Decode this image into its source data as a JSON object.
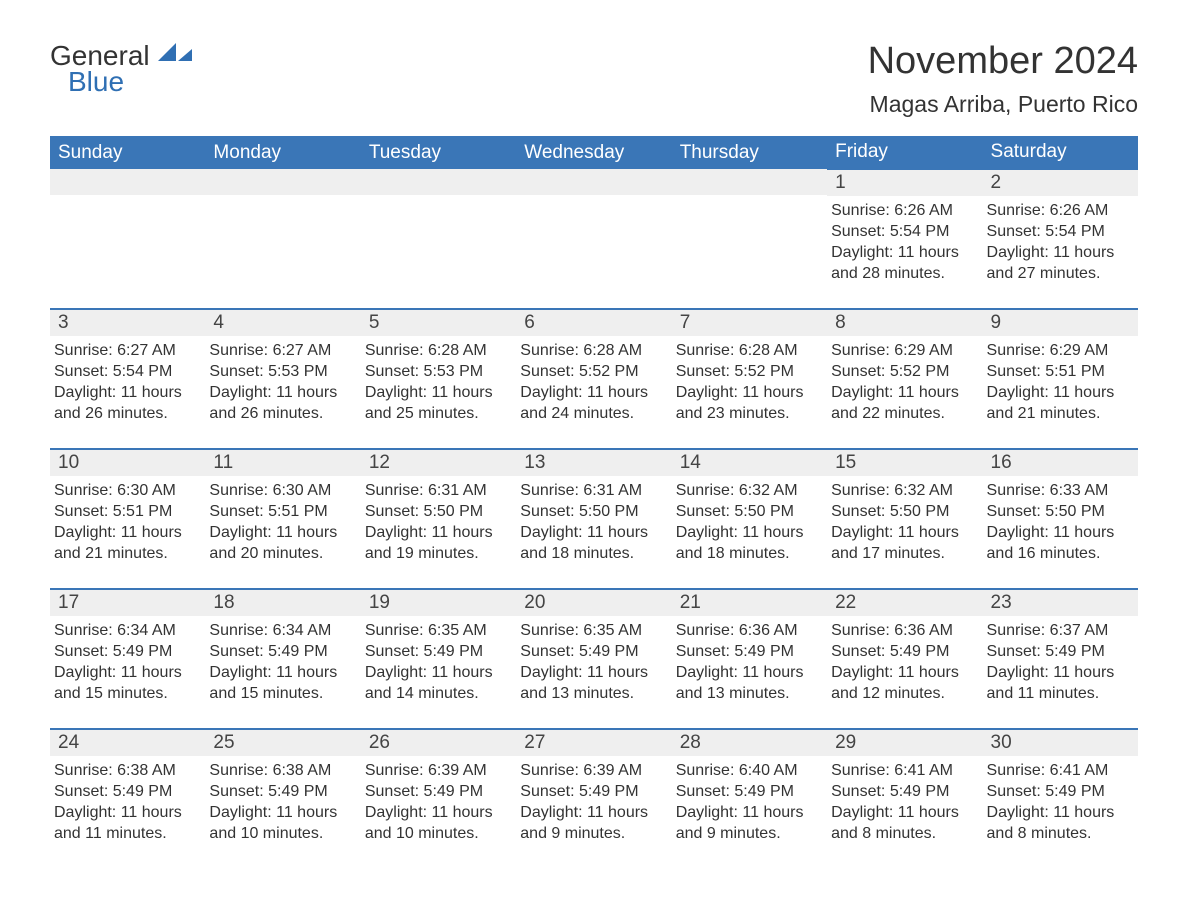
{
  "logo": {
    "text1": "General",
    "text2": "Blue"
  },
  "title": "November 2024",
  "location": "Magas Arriba, Puerto Rico",
  "colors": {
    "header_bg": "#3a76b7",
    "header_text": "#ffffff",
    "daynum_bg": "#efefef",
    "border": "#3a76b7",
    "body_text": "#333333",
    "logo_blue": "#2f6fb3"
  },
  "weekdays": [
    "Sunday",
    "Monday",
    "Tuesday",
    "Wednesday",
    "Thursday",
    "Friday",
    "Saturday"
  ],
  "weeks": [
    [
      null,
      null,
      null,
      null,
      null,
      {
        "day": "1",
        "sunrise": "Sunrise: 6:26 AM",
        "sunset": "Sunset: 5:54 PM",
        "daylight": "Daylight: 11 hours and 28 minutes."
      },
      {
        "day": "2",
        "sunrise": "Sunrise: 6:26 AM",
        "sunset": "Sunset: 5:54 PM",
        "daylight": "Daylight: 11 hours and 27 minutes."
      }
    ],
    [
      {
        "day": "3",
        "sunrise": "Sunrise: 6:27 AM",
        "sunset": "Sunset: 5:54 PM",
        "daylight": "Daylight: 11 hours and 26 minutes."
      },
      {
        "day": "4",
        "sunrise": "Sunrise: 6:27 AM",
        "sunset": "Sunset: 5:53 PM",
        "daylight": "Daylight: 11 hours and 26 minutes."
      },
      {
        "day": "5",
        "sunrise": "Sunrise: 6:28 AM",
        "sunset": "Sunset: 5:53 PM",
        "daylight": "Daylight: 11 hours and 25 minutes."
      },
      {
        "day": "6",
        "sunrise": "Sunrise: 6:28 AM",
        "sunset": "Sunset: 5:52 PM",
        "daylight": "Daylight: 11 hours and 24 minutes."
      },
      {
        "day": "7",
        "sunrise": "Sunrise: 6:28 AM",
        "sunset": "Sunset: 5:52 PM",
        "daylight": "Daylight: 11 hours and 23 minutes."
      },
      {
        "day": "8",
        "sunrise": "Sunrise: 6:29 AM",
        "sunset": "Sunset: 5:52 PM",
        "daylight": "Daylight: 11 hours and 22 minutes."
      },
      {
        "day": "9",
        "sunrise": "Sunrise: 6:29 AM",
        "sunset": "Sunset: 5:51 PM",
        "daylight": "Daylight: 11 hours and 21 minutes."
      }
    ],
    [
      {
        "day": "10",
        "sunrise": "Sunrise: 6:30 AM",
        "sunset": "Sunset: 5:51 PM",
        "daylight": "Daylight: 11 hours and 21 minutes."
      },
      {
        "day": "11",
        "sunrise": "Sunrise: 6:30 AM",
        "sunset": "Sunset: 5:51 PM",
        "daylight": "Daylight: 11 hours and 20 minutes."
      },
      {
        "day": "12",
        "sunrise": "Sunrise: 6:31 AM",
        "sunset": "Sunset: 5:50 PM",
        "daylight": "Daylight: 11 hours and 19 minutes."
      },
      {
        "day": "13",
        "sunrise": "Sunrise: 6:31 AM",
        "sunset": "Sunset: 5:50 PM",
        "daylight": "Daylight: 11 hours and 18 minutes."
      },
      {
        "day": "14",
        "sunrise": "Sunrise: 6:32 AM",
        "sunset": "Sunset: 5:50 PM",
        "daylight": "Daylight: 11 hours and 18 minutes."
      },
      {
        "day": "15",
        "sunrise": "Sunrise: 6:32 AM",
        "sunset": "Sunset: 5:50 PM",
        "daylight": "Daylight: 11 hours and 17 minutes."
      },
      {
        "day": "16",
        "sunrise": "Sunrise: 6:33 AM",
        "sunset": "Sunset: 5:50 PM",
        "daylight": "Daylight: 11 hours and 16 minutes."
      }
    ],
    [
      {
        "day": "17",
        "sunrise": "Sunrise: 6:34 AM",
        "sunset": "Sunset: 5:49 PM",
        "daylight": "Daylight: 11 hours and 15 minutes."
      },
      {
        "day": "18",
        "sunrise": "Sunrise: 6:34 AM",
        "sunset": "Sunset: 5:49 PM",
        "daylight": "Daylight: 11 hours and 15 minutes."
      },
      {
        "day": "19",
        "sunrise": "Sunrise: 6:35 AM",
        "sunset": "Sunset: 5:49 PM",
        "daylight": "Daylight: 11 hours and 14 minutes."
      },
      {
        "day": "20",
        "sunrise": "Sunrise: 6:35 AM",
        "sunset": "Sunset: 5:49 PM",
        "daylight": "Daylight: 11 hours and 13 minutes."
      },
      {
        "day": "21",
        "sunrise": "Sunrise: 6:36 AM",
        "sunset": "Sunset: 5:49 PM",
        "daylight": "Daylight: 11 hours and 13 minutes."
      },
      {
        "day": "22",
        "sunrise": "Sunrise: 6:36 AM",
        "sunset": "Sunset: 5:49 PM",
        "daylight": "Daylight: 11 hours and 12 minutes."
      },
      {
        "day": "23",
        "sunrise": "Sunrise: 6:37 AM",
        "sunset": "Sunset: 5:49 PM",
        "daylight": "Daylight: 11 hours and 11 minutes."
      }
    ],
    [
      {
        "day": "24",
        "sunrise": "Sunrise: 6:38 AM",
        "sunset": "Sunset: 5:49 PM",
        "daylight": "Daylight: 11 hours and 11 minutes."
      },
      {
        "day": "25",
        "sunrise": "Sunrise: 6:38 AM",
        "sunset": "Sunset: 5:49 PM",
        "daylight": "Daylight: 11 hours and 10 minutes."
      },
      {
        "day": "26",
        "sunrise": "Sunrise: 6:39 AM",
        "sunset": "Sunset: 5:49 PM",
        "daylight": "Daylight: 11 hours and 10 minutes."
      },
      {
        "day": "27",
        "sunrise": "Sunrise: 6:39 AM",
        "sunset": "Sunset: 5:49 PM",
        "daylight": "Daylight: 11 hours and 9 minutes."
      },
      {
        "day": "28",
        "sunrise": "Sunrise: 6:40 AM",
        "sunset": "Sunset: 5:49 PM",
        "daylight": "Daylight: 11 hours and 9 minutes."
      },
      {
        "day": "29",
        "sunrise": "Sunrise: 6:41 AM",
        "sunset": "Sunset: 5:49 PM",
        "daylight": "Daylight: 11 hours and 8 minutes."
      },
      {
        "day": "30",
        "sunrise": "Sunrise: 6:41 AM",
        "sunset": "Sunset: 5:49 PM",
        "daylight": "Daylight: 11 hours and 8 minutes."
      }
    ]
  ]
}
